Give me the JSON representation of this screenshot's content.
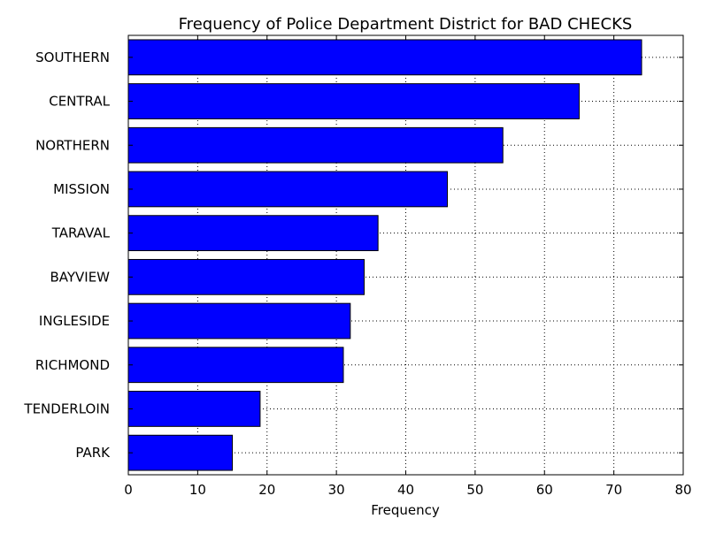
{
  "chart_data": {
    "type": "bar",
    "orientation": "horizontal",
    "title": "Frequency of Police Department District for BAD CHECKS",
    "xlabel": "Frequency",
    "ylabel": "",
    "xlim": [
      0,
      80
    ],
    "xticks": [
      0,
      10,
      20,
      30,
      40,
      50,
      60,
      70,
      80
    ],
    "grid": true,
    "legend": "none",
    "bar_color": "#0000ff",
    "categories": [
      "SOUTHERN",
      "CENTRAL",
      "NORTHERN",
      "MISSION",
      "TARAVAL",
      "BAYVIEW",
      "INGLESIDE",
      "RICHMOND",
      "TENDERLOIN",
      "PARK"
    ],
    "values": [
      74,
      65,
      54,
      46,
      36,
      34,
      32,
      31,
      19,
      15
    ]
  }
}
